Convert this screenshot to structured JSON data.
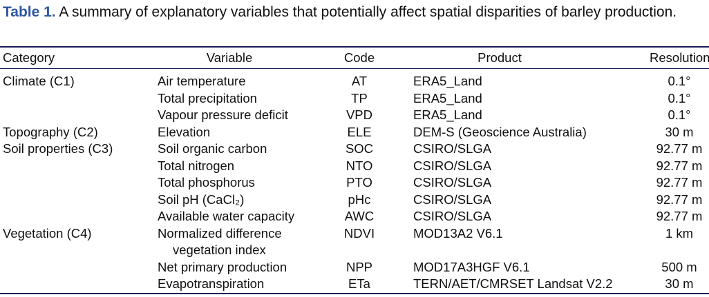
{
  "caption": {
    "label": "Table 1.",
    "text": "A summary of explanatory variables that potentially affect spatial disparities of barley production."
  },
  "table": {
    "header": [
      "Category",
      "Variable",
      "Code",
      "Product",
      "Resolution"
    ],
    "rows": [
      [
        "Climate (C1)",
        "Air temperature",
        "AT",
        "ERA5_Land",
        "0.1°"
      ],
      [
        null,
        "Total precipitation",
        "TP",
        "ERA5_Land",
        "0.1°"
      ],
      [
        null,
        "Vapour pressure deficit",
        "VPD",
        "ERA5_Land",
        "0.1°"
      ],
      [
        "Topography (C2)",
        "Elevation",
        "ELE",
        "DEM-S (Geoscience Australia)",
        "30 m"
      ],
      [
        "Soil properties (C3)",
        "Soil organic carbon",
        "SOC",
        "CSIRO/SLGA",
        "92.77 m"
      ],
      [
        null,
        "Total nitrogen",
        "NTO",
        "CSIRO/SLGA",
        "92.77 m"
      ],
      [
        null,
        "Total phosphorus",
        "PTO",
        "CSIRO/SLGA",
        "92.77 m"
      ],
      [
        null,
        "Soil pH (CaCl₂)",
        "pHc",
        "CSIRO/SLGA",
        "92.77 m"
      ],
      [
        null,
        "Available water capacity",
        "AWC",
        "CSIRO/SLGA",
        "92.77 m"
      ],
      [
        "Vegetation (C4)",
        "Normalized difference vegetation index",
        "NDVI",
        "MOD13A2 V6.1",
        "1 km"
      ],
      [
        null,
        "Net primary production",
        "NPP",
        "MOD17A3HGF V6.1",
        "500 m"
      ],
      [
        null,
        "Evapotranspiration",
        "ETa",
        "TERN/AET/CMRSET Landsat V2.2",
        "30 m"
      ]
    ]
  }
}
